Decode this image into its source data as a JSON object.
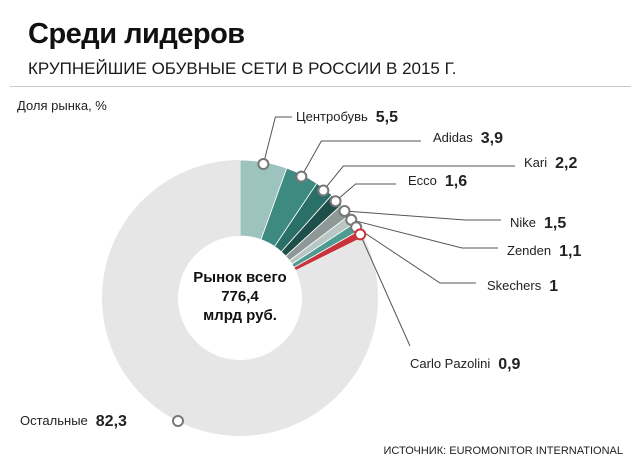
{
  "header": {
    "title": "Среди лидеров",
    "subtitle": "КРУПНЕЙШИЕ ОБУВНЫЕ СЕТИ В РОССИИ В 2015 Г.",
    "measure_label": "Доля рынка, %",
    "source": "ИСТОЧНИК: EUROMONITOR INTERNATIONAL"
  },
  "center": {
    "line1": "Рынок всего",
    "line2": "776,4",
    "line3": "млрд руб."
  },
  "colors": {
    "tsentrobuv": "#9cc3be",
    "adidas": "#3e8a80",
    "kari": "#2a6f68",
    "ecco": "#1f4f4b",
    "nike": "#8e9896",
    "zenden": "#b8c6c4",
    "skechers": "#4f9b91",
    "carlo_pazolini": "#c8343c",
    "others": "#e6e6e6",
    "accent_value": "#9b1c24"
  },
  "chart_data": {
    "type": "pie",
    "variant": "donut",
    "title": "Среди лидеров",
    "subtitle": "КРУПНЕЙШИЕ ОБУВНЫЕ СЕТИ В РОССИИ В 2015 Г.",
    "unit": "Доля рынка, %",
    "total_label": "Рынок всего 776,4 млрд руб.",
    "slices": [
      {
        "name": "Центробувь",
        "value": 5.5,
        "display": "5,5"
      },
      {
        "name": "Adidas",
        "value": 3.9,
        "display": "3,9"
      },
      {
        "name": "Kari",
        "value": 2.2,
        "display": "2,2"
      },
      {
        "name": "Ecco",
        "value": 1.6,
        "display": "1,6"
      },
      {
        "name": "Nike",
        "value": 1.5,
        "display": "1,5"
      },
      {
        "name": "Zenden",
        "value": 1.1,
        "display": "1,1"
      },
      {
        "name": "Skechers",
        "value": 1.0,
        "display": "1"
      },
      {
        "name": "Carlo Pazolini",
        "value": 0.9,
        "display": "0,9"
      },
      {
        "name": "Остальные",
        "value": 82.3,
        "display": "82,3"
      }
    ]
  }
}
